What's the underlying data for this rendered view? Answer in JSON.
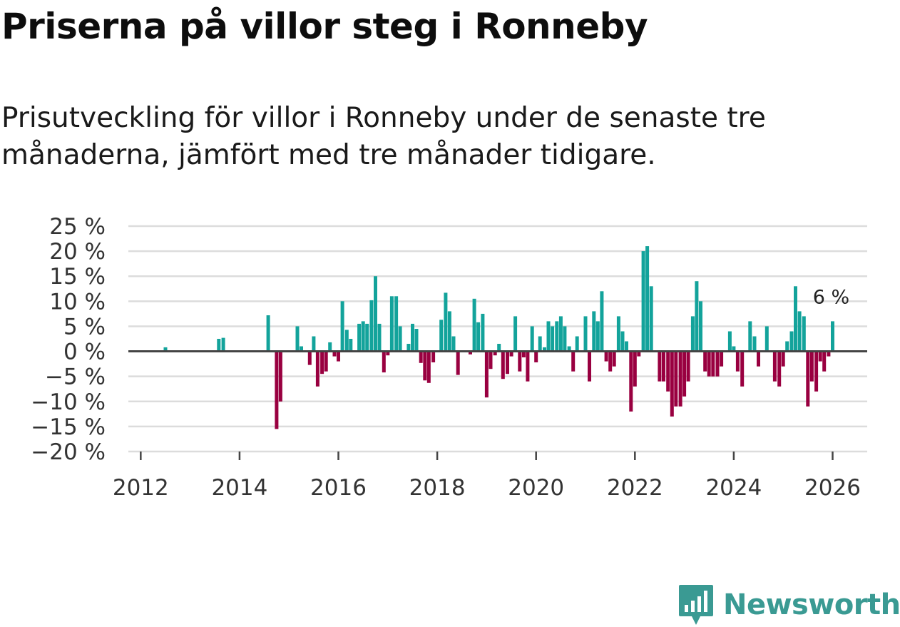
{
  "title": "Priserna på villor steg i Ronneby",
  "subtitle": "Prisutveckling för villor i Ronneby under de senaste tre månaderna, jämfört med tre månader tidigare.",
  "brand": "Newsworthy",
  "colors": {
    "positive": "#13a39b",
    "negative": "#990040",
    "brand": "#3a9a93"
  },
  "chart_data": {
    "type": "bar",
    "title": "Priserna på villor steg i Ronneby",
    "xlabel": "",
    "ylabel": "",
    "ylim": [
      -20,
      25
    ],
    "yticks": [
      25,
      20,
      15,
      10,
      5,
      0,
      -5,
      -10,
      -15,
      -20
    ],
    "ytick_labels": [
      "25 %",
      "20 %",
      "15 %",
      "10 %",
      "5 %",
      "0 %",
      "−5 %",
      "−10 %",
      "−15 %",
      "−20 %"
    ],
    "xlim": [
      2011.75,
      2026.7
    ],
    "xticks": [
      2012,
      2014,
      2016,
      2018,
      2020,
      2022,
      2024,
      2026
    ],
    "xtick_labels": [
      "2012",
      "2014",
      "2016",
      "2018",
      "2020",
      "2022",
      "2024",
      "2026"
    ],
    "annotation": {
      "text": "6 %",
      "x": 2026.0,
      "y": 6
    },
    "series": [
      {
        "name": "Prisutveckling",
        "points": [
          [
            2012.5,
            0.8
          ],
          [
            2013.58,
            2.5
          ],
          [
            2013.67,
            2.7
          ],
          [
            2014.58,
            7.2
          ],
          [
            2014.75,
            -15.5
          ],
          [
            2014.83,
            -10
          ],
          [
            2015.17,
            5
          ],
          [
            2015.25,
            1
          ],
          [
            2015.42,
            -2.7
          ],
          [
            2015.5,
            3
          ],
          [
            2015.58,
            -7
          ],
          [
            2015.67,
            -4.5
          ],
          [
            2015.75,
            -4
          ],
          [
            2015.83,
            1.8
          ],
          [
            2015.92,
            -1
          ],
          [
            2016.0,
            -2
          ],
          [
            2016.08,
            10
          ],
          [
            2016.17,
            4.3
          ],
          [
            2016.25,
            2.5
          ],
          [
            2016.42,
            5.5
          ],
          [
            2016.5,
            6
          ],
          [
            2016.58,
            5.5
          ],
          [
            2016.67,
            10.2
          ],
          [
            2016.75,
            15
          ],
          [
            2016.83,
            5.5
          ],
          [
            2016.92,
            -4.2
          ],
          [
            2017.0,
            -0.8
          ],
          [
            2017.08,
            11
          ],
          [
            2017.17,
            11
          ],
          [
            2017.25,
            5
          ],
          [
            2017.42,
            1.5
          ],
          [
            2017.5,
            5.5
          ],
          [
            2017.58,
            4.5
          ],
          [
            2017.67,
            -2.3
          ],
          [
            2017.75,
            -5.8
          ],
          [
            2017.83,
            -6.3
          ],
          [
            2017.92,
            -2.2
          ],
          [
            2018.08,
            6.3
          ],
          [
            2018.17,
            11.7
          ],
          [
            2018.25,
            8
          ],
          [
            2018.33,
            3
          ],
          [
            2018.42,
            -4.7
          ],
          [
            2018.67,
            -0.6
          ],
          [
            2018.75,
            10.5
          ],
          [
            2018.83,
            5.8
          ],
          [
            2018.92,
            7.5
          ],
          [
            2019.0,
            -9.2
          ],
          [
            2019.08,
            -3.5
          ],
          [
            2019.17,
            -0.8
          ],
          [
            2019.25,
            1.5
          ],
          [
            2019.33,
            -5.5
          ],
          [
            2019.42,
            -4.5
          ],
          [
            2019.5,
            -1
          ],
          [
            2019.58,
            7
          ],
          [
            2019.67,
            -4
          ],
          [
            2019.75,
            -1.2
          ],
          [
            2019.83,
            -6
          ],
          [
            2019.92,
            5
          ],
          [
            2020.0,
            -2.2
          ],
          [
            2020.08,
            3
          ],
          [
            2020.17,
            0.8
          ],
          [
            2020.25,
            6
          ],
          [
            2020.33,
            5
          ],
          [
            2020.42,
            6
          ],
          [
            2020.5,
            7
          ],
          [
            2020.58,
            5
          ],
          [
            2020.67,
            1
          ],
          [
            2020.75,
            -4
          ],
          [
            2020.83,
            3
          ],
          [
            2021.0,
            7
          ],
          [
            2021.08,
            -6
          ],
          [
            2021.17,
            8
          ],
          [
            2021.25,
            6
          ],
          [
            2021.33,
            12
          ],
          [
            2021.42,
            -2
          ],
          [
            2021.5,
            -4
          ],
          [
            2021.58,
            -3
          ],
          [
            2021.67,
            7
          ],
          [
            2021.75,
            4
          ],
          [
            2021.83,
            2
          ],
          [
            2021.92,
            -12
          ],
          [
            2022.0,
            -7
          ],
          [
            2022.08,
            -1
          ],
          [
            2022.17,
            20
          ],
          [
            2022.25,
            21
          ],
          [
            2022.33,
            13
          ],
          [
            2022.5,
            -6
          ],
          [
            2022.58,
            -6
          ],
          [
            2022.67,
            -8
          ],
          [
            2022.75,
            -13
          ],
          [
            2022.83,
            -11
          ],
          [
            2022.92,
            -11
          ],
          [
            2023.0,
            -9
          ],
          [
            2023.08,
            -6
          ],
          [
            2023.17,
            7
          ],
          [
            2023.25,
            14
          ],
          [
            2023.33,
            10
          ],
          [
            2023.42,
            -4
          ],
          [
            2023.5,
            -5
          ],
          [
            2023.58,
            -5
          ],
          [
            2023.67,
            -5
          ],
          [
            2023.75,
            -3
          ],
          [
            2023.92,
            4
          ],
          [
            2024.0,
            1
          ],
          [
            2024.08,
            -4
          ],
          [
            2024.17,
            -7
          ],
          [
            2024.33,
            6
          ],
          [
            2024.42,
            3
          ],
          [
            2024.5,
            -3
          ],
          [
            2024.67,
            5
          ],
          [
            2024.83,
            -6
          ],
          [
            2024.92,
            -7
          ],
          [
            2025.0,
            -3
          ],
          [
            2025.08,
            2
          ],
          [
            2025.17,
            4
          ],
          [
            2025.25,
            13
          ],
          [
            2025.33,
            8
          ],
          [
            2025.42,
            7
          ],
          [
            2025.5,
            -11
          ],
          [
            2025.58,
            -6
          ],
          [
            2025.67,
            -8
          ],
          [
            2025.75,
            -2
          ],
          [
            2025.83,
            -4
          ],
          [
            2025.92,
            -1
          ],
          [
            2026.0,
            6
          ]
        ]
      }
    ]
  }
}
